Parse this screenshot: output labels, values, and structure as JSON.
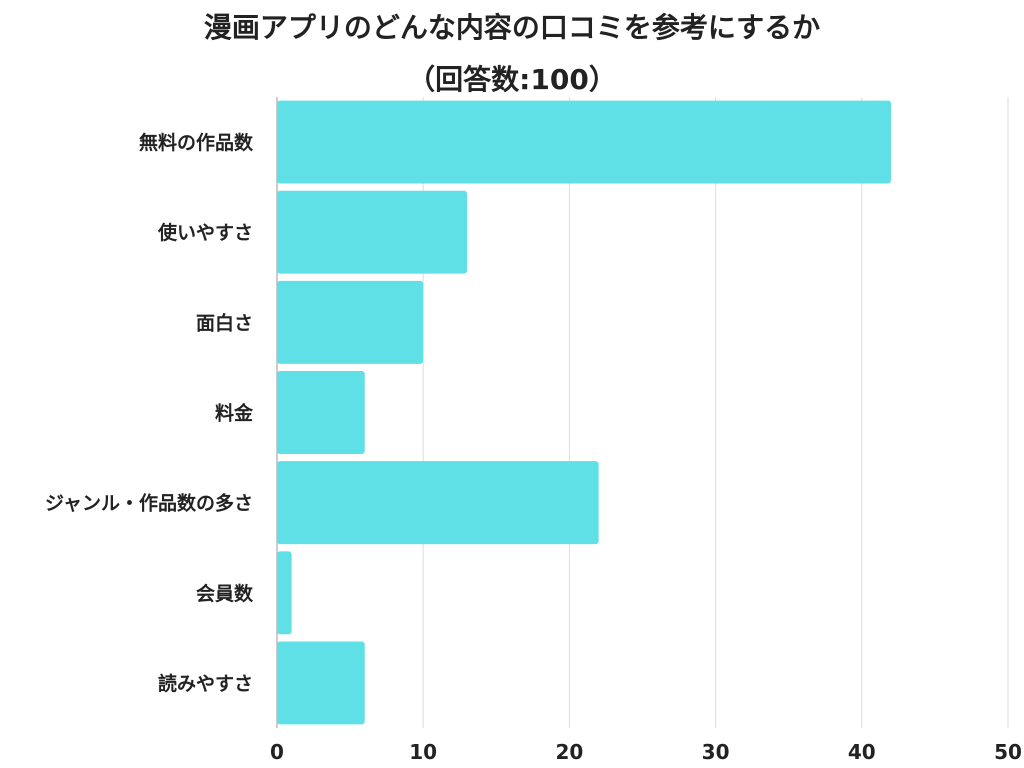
{
  "chart_data": {
    "type": "bar",
    "orientation": "horizontal",
    "title": "漫画アプリのどんな内容の口コミを参考にするか",
    "subtitle": "（回答数:100）",
    "xlabel": "",
    "ylabel": "",
    "categories": [
      "無料の作品数",
      "使いやすさ",
      "面白さ",
      "料金",
      "ジャンル・作品数の多さ",
      "会員数",
      "読みやすさ"
    ],
    "values": [
      42,
      13,
      10,
      6,
      22,
      1,
      6
    ],
    "xlim": [
      0,
      50
    ],
    "xticks": [
      "0",
      "10",
      "20",
      "30",
      "40",
      "50"
    ],
    "grid": true,
    "bar_color": "#5ee0e6",
    "grid_color": "#dddddd"
  }
}
